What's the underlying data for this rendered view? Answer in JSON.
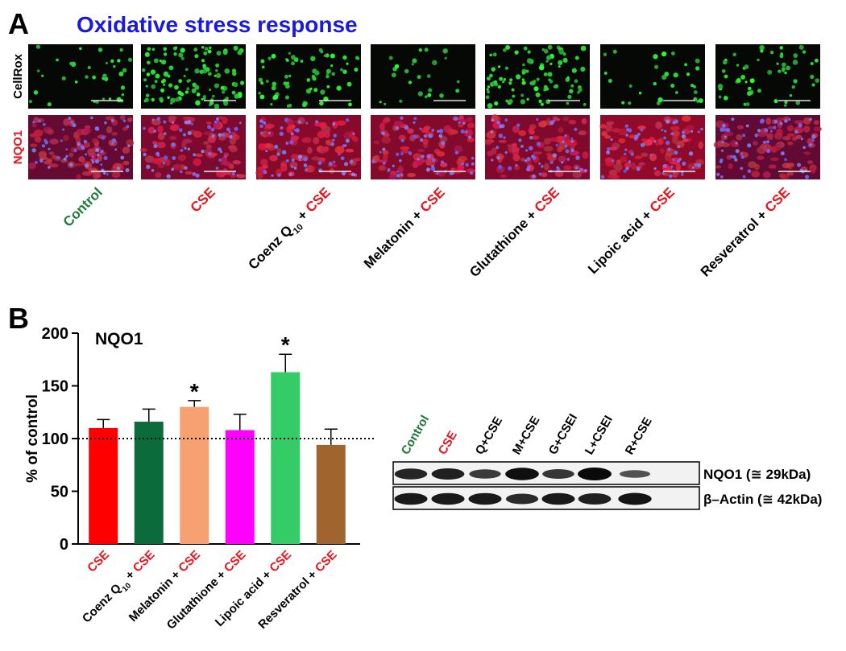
{
  "panel_a": {
    "label": "A",
    "title": "Oxidative stress response",
    "title_color": "#1a1adf",
    "rows": [
      {
        "label": "CellRox",
        "color": "#000000"
      },
      {
        "label": "NQO1",
        "color": "#e8141a"
      }
    ],
    "columns": [
      [
        {
          "text": "Control",
          "color": "#1f7a3a"
        }
      ],
      [
        {
          "text": "CSE",
          "color": "#e8141a"
        }
      ],
      [
        {
          "text": "Coenz Q",
          "color": "#000000"
        },
        {
          "text": "10",
          "color": "#000000",
          "sub": true
        },
        {
          "text": " + ",
          "color": "#000000"
        },
        {
          "text": "CSE",
          "color": "#e8141a"
        }
      ],
      [
        {
          "text": "Melatonin + ",
          "color": "#000000"
        },
        {
          "text": "CSE",
          "color": "#e8141a"
        }
      ],
      [
        {
          "text": "Glutathione + ",
          "color": "#000000"
        },
        {
          "text": "CSE",
          "color": "#e8141a"
        }
      ],
      [
        {
          "text": "Lipoic acid + ",
          "color": "#000000"
        },
        {
          "text": "CSE",
          "color": "#e8141a"
        }
      ],
      [
        {
          "text": "Resveratrol + ",
          "color": "#000000"
        },
        {
          "text": "CSE",
          "color": "#e8141a"
        }
      ]
    ]
  },
  "panel_b": {
    "label": "B",
    "chart_data": {
      "type": "bar",
      "title": "NQO1",
      "y_label": "% of control",
      "categories": [
        [
          {
            "text": "CSE",
            "color": "#e8141a"
          }
        ],
        [
          {
            "text": "Coenz Q",
            "color": "#000000"
          },
          {
            "text": "10",
            "color": "#000000",
            "sub": true
          },
          {
            "text": " + ",
            "color": "#000000"
          },
          {
            "text": "CSE",
            "color": "#e8141a"
          }
        ],
        [
          {
            "text": "Melatonin + ",
            "color": "#000000"
          },
          {
            "text": "CSE",
            "color": "#e8141a"
          }
        ],
        [
          {
            "text": "Glutathione + ",
            "color": "#000000"
          },
          {
            "text": "CSE",
            "color": "#e8141a"
          }
        ],
        [
          {
            "text": "Lipoic acid + ",
            "color": "#000000"
          },
          {
            "text": "CSE",
            "color": "#e8141a"
          }
        ],
        [
          {
            "text": "Resveratrol + ",
            "color": "#000000"
          },
          {
            "text": "CSE",
            "color": "#e8141a"
          }
        ]
      ],
      "values": [
        110,
        116,
        130,
        108,
        163,
        94
      ],
      "errors": [
        8,
        12,
        6,
        15,
        17,
        15
      ],
      "colors": [
        "#ff0000",
        "#0b6b3a",
        "#f7a072",
        "#ff00ff",
        "#33cc66",
        "#a0652f"
      ],
      "significance": [
        null,
        null,
        "*",
        null,
        "*",
        null
      ],
      "reference_line": 100,
      "ylim": [
        0,
        200
      ],
      "yticks": [
        0,
        50,
        100,
        150,
        200
      ]
    },
    "blot": {
      "lanes": [
        {
          "text": "Control",
          "color": "#1f7a3a"
        },
        {
          "text": "CSE",
          "color": "#e8141a"
        },
        {
          "text": "Q+CSE",
          "color": "#000000"
        },
        {
          "text": "M+CSE",
          "color": "#000000"
        },
        {
          "text": "G+CSEI",
          "color": "#000000"
        },
        {
          "text": "L+CSEI",
          "color": "#000000"
        },
        {
          "text": "R+CSE",
          "color": "#000000"
        }
      ],
      "bands": [
        "NQO1 (≅ 29kDa)",
        "β–Actin (≅ 42kDa)"
      ]
    }
  }
}
